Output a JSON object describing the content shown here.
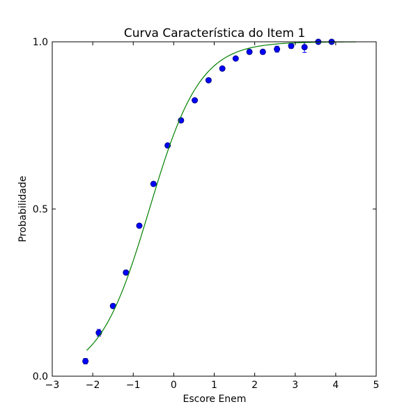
{
  "chart_data": {
    "type": "scatter",
    "title": "Curva Característica do Item 1",
    "xlabel": "Escore Enem",
    "ylabel": "Probabilidade",
    "xlim": [
      -3,
      5
    ],
    "ylim": [
      0,
      1
    ],
    "xticks": [
      "−3",
      "−2",
      "−1",
      "0",
      "1",
      "2",
      "3",
      "4",
      "5"
    ],
    "yticks": [
      "0.0",
      "0.5",
      "1.0"
    ],
    "grid": false,
    "series": [
      {
        "kind": "points",
        "color": "#0000ff",
        "edge_color": "#000080",
        "points": [
          {
            "x": -2.18,
            "y": 0.045,
            "err": 0.008
          },
          {
            "x": -1.85,
            "y": 0.13,
            "err": 0.01
          },
          {
            "x": -1.5,
            "y": 0.21,
            "err": 0.006
          },
          {
            "x": -1.18,
            "y": 0.31,
            "err": 0.006
          },
          {
            "x": -0.85,
            "y": 0.45,
            "err": 0.006
          },
          {
            "x": -0.5,
            "y": 0.575,
            "err": 0.006
          },
          {
            "x": -0.15,
            "y": 0.69,
            "err": 0.005
          },
          {
            "x": 0.18,
            "y": 0.765,
            "err": 0.005
          },
          {
            "x": 0.52,
            "y": 0.825,
            "err": 0.005
          },
          {
            "x": 0.86,
            "y": 0.885,
            "err": 0.005
          },
          {
            "x": 1.2,
            "y": 0.92,
            "err": 0.005
          },
          {
            "x": 1.53,
            "y": 0.95,
            "err": 0.005
          },
          {
            "x": 1.87,
            "y": 0.97,
            "err": 0.005
          },
          {
            "x": 2.2,
            "y": 0.97,
            "err": 0.007
          },
          {
            "x": 2.55,
            "y": 0.978,
            "err": 0.009
          },
          {
            "x": 2.9,
            "y": 0.988,
            "err": 0.008
          },
          {
            "x": 3.23,
            "y": 0.984,
            "err": 0.016
          },
          {
            "x": 3.57,
            "y": 1.0,
            "err": 0.004
          },
          {
            "x": 3.9,
            "y": 1.0,
            "err": 0.004
          }
        ]
      },
      {
        "kind": "curve",
        "color": "#008000",
        "function": "logistic",
        "a": 1.6,
        "b": -0.6,
        "x_range": [
          -2.15,
          4.5
        ]
      }
    ]
  }
}
